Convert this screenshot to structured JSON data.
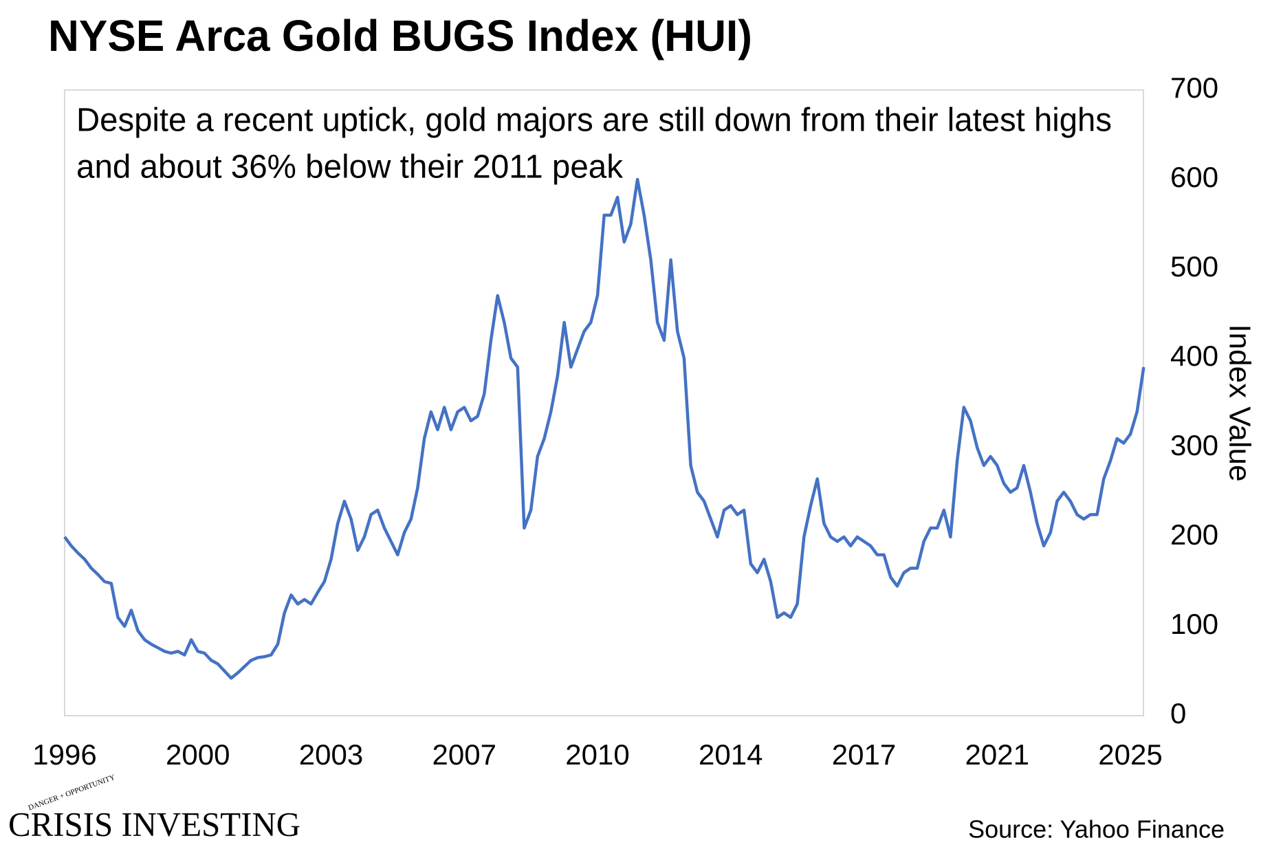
{
  "chart_data": {
    "type": "line",
    "title": "NYSE Arca Gold BUGS Index (HUI)",
    "annotation": [
      "Despite a recent uptick, gold majors are still down from their latest highs",
      "and about 36% below their 2011 peak"
    ],
    "y_label": "Index Value",
    "source": "Source: Yahoo Finance",
    "logo": "Crisis Investing",
    "logo_tagline": "DANGER + OPPORTUNITY",
    "categories": [
      "1996",
      null,
      null,
      null,
      null,
      null,
      null,
      null,
      null,
      null,
      null,
      null,
      null,
      null,
      null,
      null,
      null,
      null,
      null,
      null,
      "2000",
      null,
      null,
      null,
      null,
      null,
      null,
      null,
      null,
      null,
      null,
      null,
      null,
      null,
      null,
      null,
      null,
      null,
      null,
      null,
      "2003",
      null,
      null,
      null,
      null,
      null,
      null,
      null,
      null,
      null,
      null,
      null,
      null,
      null,
      null,
      null,
      null,
      null,
      null,
      null,
      "2007",
      null,
      null,
      null,
      null,
      null,
      null,
      null,
      null,
      null,
      null,
      null,
      null,
      null,
      null,
      null,
      null,
      null,
      null,
      null,
      "2010",
      null,
      null,
      null,
      null,
      null,
      null,
      null,
      null,
      null,
      null,
      null,
      null,
      null,
      null,
      null,
      null,
      null,
      null,
      null,
      "2014",
      null,
      null,
      null,
      null,
      null,
      null,
      null,
      null,
      null,
      null,
      null,
      null,
      null,
      null,
      null,
      null,
      null,
      null,
      null,
      "2017",
      null,
      null,
      null,
      null,
      null,
      null,
      null,
      null,
      null,
      null,
      null,
      null,
      null,
      null,
      null,
      null,
      null,
      null,
      null,
      "2021",
      null,
      null,
      null,
      null,
      null,
      null,
      null,
      null,
      null,
      null,
      null,
      null,
      null,
      null,
      null,
      null,
      null,
      null,
      null,
      "2025",
      null,
      null
    ],
    "series": [
      {
        "name": "HUI",
        "color": "#4472c4",
        "values": [
          200,
          190,
          182,
          175,
          165,
          158,
          150,
          148,
          110,
          100,
          118,
          95,
          85,
          80,
          76,
          72,
          70,
          72,
          68,
          85,
          72,
          70,
          62,
          58,
          50,
          42,
          48,
          55,
          62,
          65,
          66,
          68,
          80,
          115,
          135,
          125,
          130,
          125,
          138,
          150,
          175,
          215,
          240,
          220,
          185,
          200,
          225,
          230,
          210,
          195,
          180,
          205,
          220,
          255,
          310,
          340,
          320,
          345,
          320,
          340,
          345,
          330,
          335,
          360,
          420,
          470,
          440,
          400,
          390,
          210,
          230,
          290,
          310,
          340,
          380,
          440,
          390,
          410,
          430,
          440,
          470,
          560,
          560,
          580,
          530,
          550,
          600,
          560,
          510,
          440,
          420,
          510,
          430,
          400,
          280,
          250,
          240,
          220,
          200,
          230,
          235,
          225,
          230,
          170,
          160,
          175,
          150,
          110,
          115,
          110,
          125,
          200,
          235,
          265,
          215,
          200,
          195,
          200,
          190,
          200,
          195,
          190,
          180,
          180,
          155,
          145,
          160,
          165,
          165,
          195,
          210,
          210,
          230,
          200,
          285,
          345,
          330,
          300,
          280,
          290,
          280,
          260,
          250,
          255,
          280,
          250,
          215,
          190,
          205,
          240,
          250,
          240,
          225,
          220,
          225,
          225,
          265,
          285,
          310,
          305,
          315,
          340,
          390
        ]
      }
    ],
    "ylim": [
      0,
      700
    ],
    "yticks": [
      0,
      100,
      200,
      300,
      400,
      500,
      600,
      700
    ],
    "grid": false
  }
}
